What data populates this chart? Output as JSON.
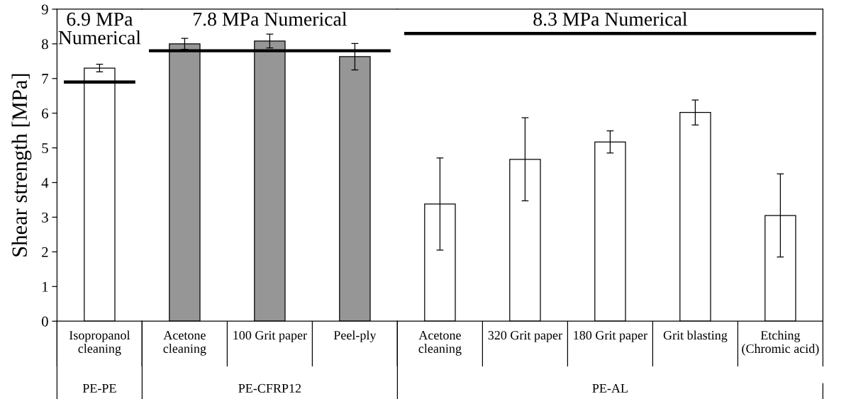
{
  "chart_data": [
    {
      "type": "bar",
      "xlabel": "PE-PE",
      "ylabel": "Shear strength [MPa]",
      "categories": [
        "Isopropanol\ncleaning"
      ],
      "values": [
        7.3
      ],
      "errors": [
        0.11
      ],
      "colors": [
        "#ffffff"
      ],
      "ylim": [
        0,
        9
      ],
      "yticks": [
        0,
        1,
        2,
        3,
        4,
        5,
        6,
        7,
        8,
        9
      ],
      "grid": false,
      "ref_lines": [
        {
          "axis": "y",
          "value": 6.9,
          "label": "6.9 MPa\nNumerical",
          "color": "#000000"
        }
      ]
    },
    {
      "type": "bar",
      "xlabel": "PE-CFRP12",
      "categories": [
        "Acetone\ncleaning",
        "100 Grit paper",
        "Peel-ply"
      ],
      "values": [
        8.0,
        8.08,
        7.63
      ],
      "errors": [
        0.16,
        0.2,
        0.38
      ],
      "colors": [
        "#969696",
        "#969696",
        "#969696"
      ],
      "ylim": [
        0,
        9
      ],
      "tick_labels": "x",
      "grid": false,
      "ref_lines": [
        {
          "axis": "y",
          "value": 7.8,
          "label": "7.8 MPa Numerical",
          "color": "#000000"
        }
      ]
    },
    {
      "type": "bar",
      "xlabel": "PE-AL",
      "categories": [
        "Acetone\ncleaning",
        "320 Grit paper",
        "180 Grit paper",
        "Grit blasting",
        "Etching\n(Chromic acid)"
      ],
      "values": [
        3.38,
        4.67,
        5.17,
        6.02,
        3.05
      ],
      "errors": [
        1.33,
        1.2,
        0.32,
        0.36,
        1.2
      ],
      "colors": [
        "#ffffff",
        "#ffffff",
        "#ffffff",
        "#ffffff",
        "#ffffff"
      ],
      "ylim": [
        0,
        9
      ],
      "tick_labels": "x",
      "grid": false,
      "ref_lines": [
        {
          "axis": "y",
          "value": 8.3,
          "label": "8.3 MPa Numerical",
          "color": "#000000"
        }
      ]
    }
  ]
}
